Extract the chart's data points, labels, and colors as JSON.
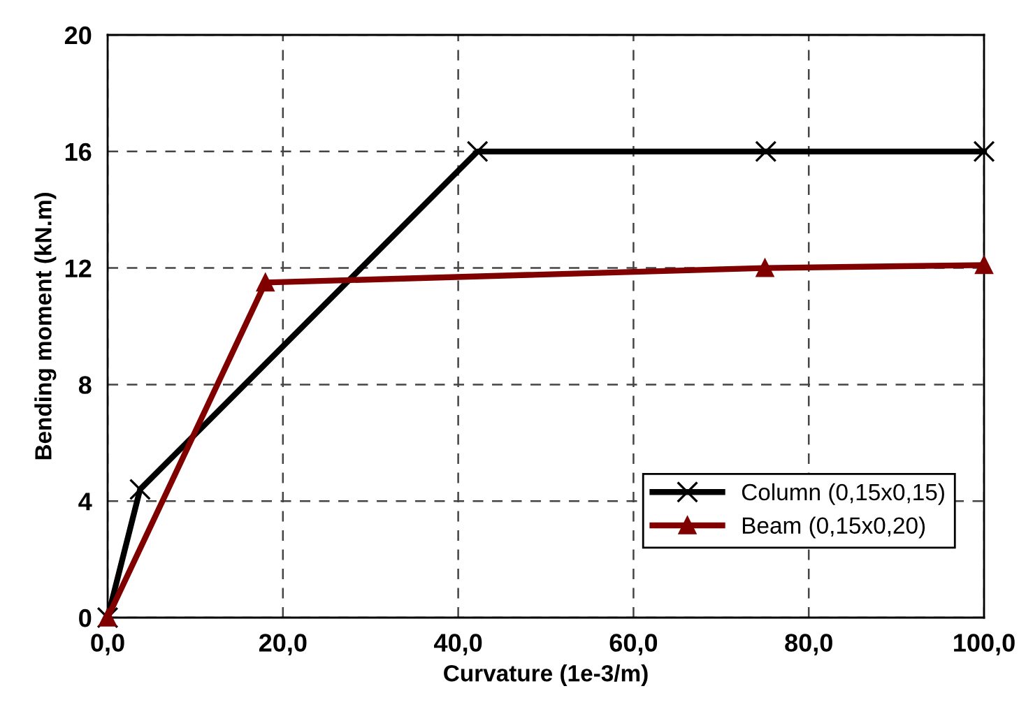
{
  "chart_data": {
    "type": "line",
    "xlabel": "Curvature (1e-3/m)",
    "ylabel": "Bending moment (kN.m)",
    "xlim": [
      0,
      100
    ],
    "xticks": [
      {
        "value": 0,
        "label": "0,0"
      },
      {
        "value": 20,
        "label": "20,0"
      },
      {
        "value": 40,
        "label": "40,0"
      },
      {
        "value": 60,
        "label": "60,0"
      },
      {
        "value": 80,
        "label": "80,0"
      },
      {
        "value": 100,
        "label": "100,0"
      }
    ],
    "ylim": [
      0,
      20
    ],
    "yticks": [
      0,
      4,
      8,
      12,
      16,
      20
    ],
    "grid": true,
    "legend": "bottom right",
    "series": [
      {
        "name": "Column (0,15x0,15)",
        "color": "#000000",
        "marker": "cross",
        "x": [
          0,
          3.7,
          42.2,
          75.1,
          100
        ],
        "values": [
          0,
          4.4,
          16,
          16,
          16
        ]
      },
      {
        "name": "Beam (0,15x0,20)",
        "color": "#800000",
        "marker": "triangle",
        "x": [
          0,
          18,
          75,
          100
        ],
        "values": [
          0,
          11.5,
          12,
          12.1
        ]
      }
    ]
  }
}
